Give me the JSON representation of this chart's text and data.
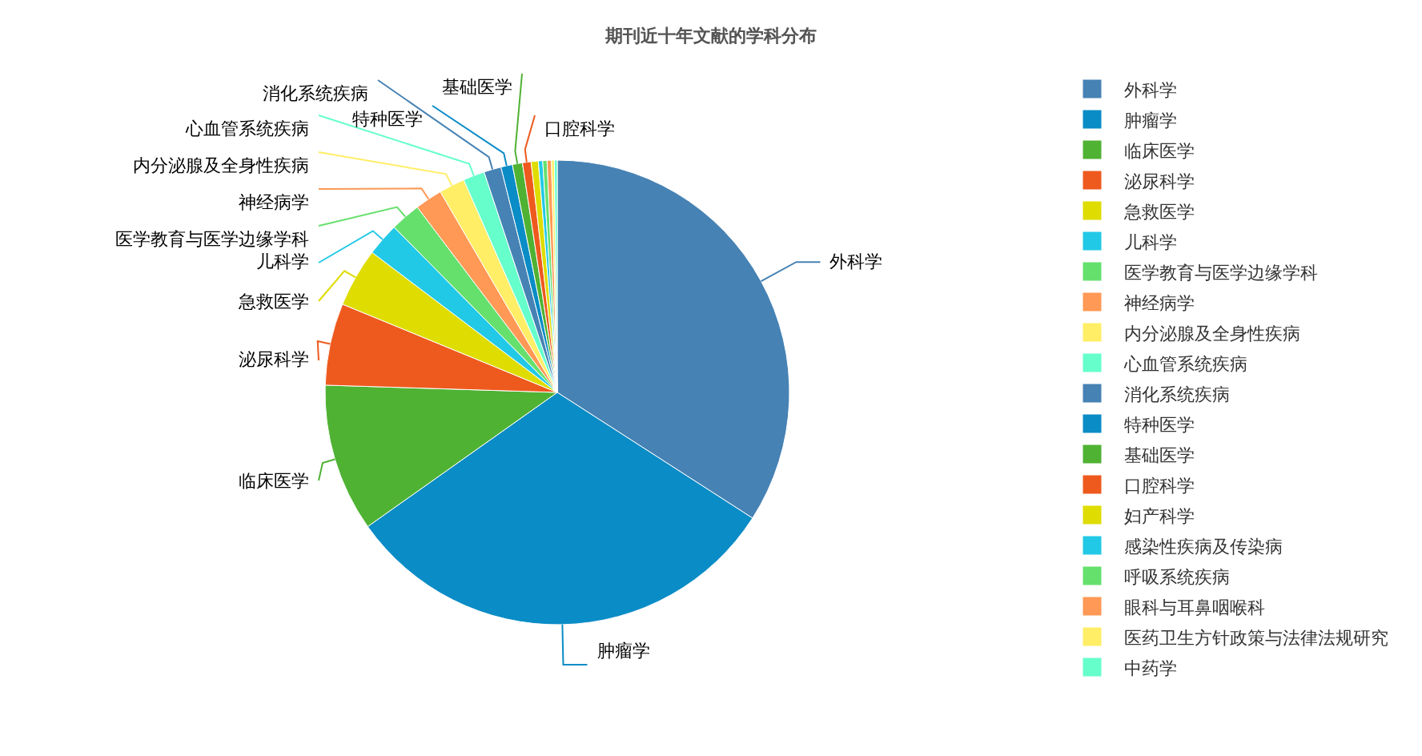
{
  "chart_data": {
    "type": "pie",
    "title": "期刊近十年文献的学科分布",
    "categories": [
      "外科学",
      "肿瘤学",
      "临床医学",
      "泌尿科学",
      "急救医学",
      "儿科学",
      "医学教育与医学边缘学科",
      "神经病学",
      "内分泌腺及全身性疾病",
      "心血管系统疾病",
      "消化系统疾病",
      "特种医学",
      "基础医学",
      "口腔科学",
      "妇产科学",
      "感染性疾病及传染病",
      "呼吸系统疾病",
      "眼科与耳鼻咽喉科",
      "医药卫生方针政策与法律法规研究",
      "中药学"
    ],
    "values": [
      34.1,
      31.1,
      10.3,
      5.7,
      4.1,
      2.3,
      2.1,
      1.9,
      1.8,
      1.5,
      1.2,
      0.8,
      0.7,
      0.6,
      0.5,
      0.3,
      0.3,
      0.3,
      0.2,
      0.2
    ],
    "colors": [
      "#4682b4",
      "#0a8cc6",
      "#4fb233",
      "#ee5a1e",
      "#dedc00",
      "#22c9e6",
      "#66e06d",
      "#ff9955",
      "#ffee66",
      "#66ffcc",
      "#4682b4",
      "#0a8cc6",
      "#4fb233",
      "#ee5a1e",
      "#dedc00",
      "#22c9e6",
      "#66e06d",
      "#ff9955",
      "#ffee66",
      "#66ffcc"
    ],
    "value_labels": [
      "外科学",
      "肿瘤学",
      "临床医学",
      "泌尿科学",
      "急救医学",
      "儿科学",
      "医学教育与医学边缘学科",
      "神经病学",
      "内分泌腺及全身性疾病",
      "心血管系统疾病",
      "消化系统疾病",
      "特种医学",
      "基础医学",
      "口腔科学",
      null,
      null,
      null,
      null,
      null,
      null
    ],
    "legend": "right"
  }
}
